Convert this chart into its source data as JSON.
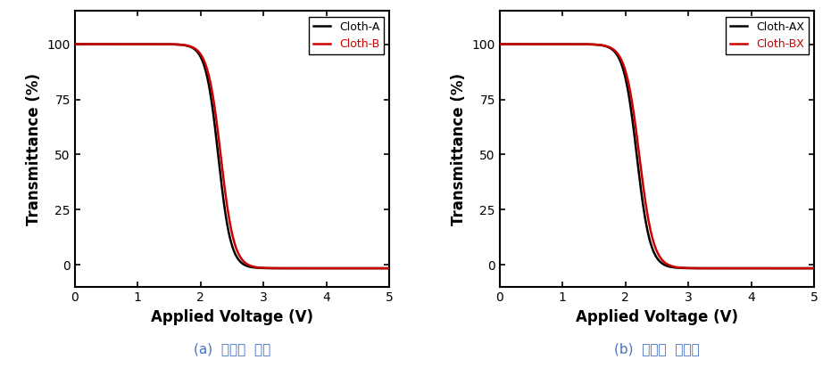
{
  "subplot_a": {
    "xlabel": "Applied Voltage (V)",
    "ylabel": "Transmittance (%)",
    "xlim": [
      0,
      5
    ],
    "ylim": [
      -10,
      115
    ],
    "yticks": [
      0,
      25,
      50,
      75,
      100
    ],
    "xticks": [
      0,
      1,
      2,
      3,
      4,
      5
    ],
    "legend_labels": [
      "Cloth-A",
      "Cloth-B"
    ],
    "line_colors": [
      "#000000",
      "#cc0000"
    ],
    "caption": "(a)  기모체  처리",
    "curve_A": {
      "v0": 2.28,
      "steepness": 10.0,
      "max_T": 100,
      "min_T": -1.5
    },
    "curve_B": {
      "v0": 2.32,
      "steepness": 9.5,
      "max_T": 100,
      "min_T": -1.5
    }
  },
  "subplot_b": {
    "xlabel": "Applied Voltage (V)",
    "ylabel": "Transmittance (%)",
    "xlim": [
      0,
      5
    ],
    "ylim": [
      -10,
      115
    ],
    "yticks": [
      0,
      25,
      50,
      75,
      100
    ],
    "xticks": [
      0,
      1,
      2,
      3,
      4,
      5
    ],
    "legend_labels": [
      "Cloth-AX",
      "Cloth-BX"
    ],
    "line_colors": [
      "#000000",
      "#cc0000"
    ],
    "caption": "(b)  기모체  무처리",
    "curve_A": {
      "v0": 2.18,
      "steepness": 9.5,
      "max_T": 100,
      "min_T": -1.5
    },
    "curve_B": {
      "v0": 2.22,
      "steepness": 9.0,
      "max_T": 100,
      "min_T": -1.5
    }
  },
  "caption_color": "#4472c4",
  "caption_fontsize": 11,
  "axis_label_fontsize": 12,
  "tick_fontsize": 10,
  "legend_fontsize": 9,
  "line_width": 1.8,
  "background_color": "#ffffff"
}
